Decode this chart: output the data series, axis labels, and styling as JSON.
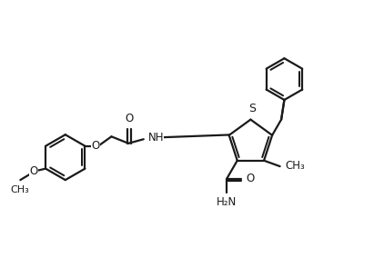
{
  "bg_color": "#ffffff",
  "line_color": "#1a1a1a",
  "line_width": 1.6,
  "fig_width": 4.22,
  "fig_height": 2.84,
  "dpi": 100,
  "font_size": 8.5,
  "xlim": [
    0,
    10
  ],
  "ylim": [
    0,
    6.8
  ]
}
